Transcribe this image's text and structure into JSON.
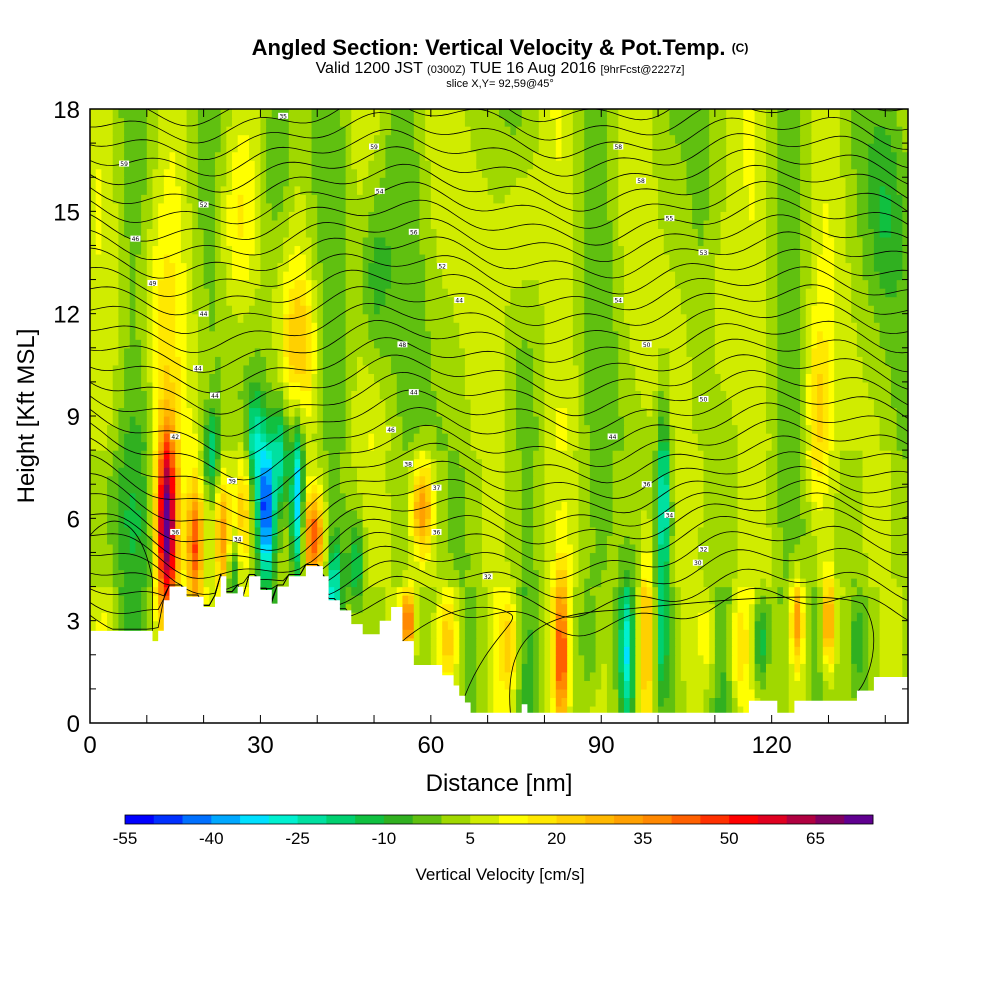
{
  "header": {
    "title": "Angled Section: Vertical Velocity & Pot.Temp.",
    "title_unit": "(C)",
    "subtitle_main": "Valid 1200 JST",
    "subtitle_z": "(0300Z)",
    "subtitle_date": "TUE 16 Aug 2016",
    "subtitle_fcst": "[9hrFcst@2227z]",
    "slice": "slice X,Y= 92,59@45°"
  },
  "chart_data": {
    "type": "heatmap",
    "xlabel": "Distance [nm]",
    "ylabel": "Height [Kft MSL]",
    "xlim": [
      0,
      144
    ],
    "ylim": [
      0,
      18
    ],
    "xticks": [
      0,
      30,
      60,
      90,
      120
    ],
    "yticks": [
      0,
      3,
      6,
      9,
      12,
      15,
      18
    ],
    "terrain_kft": [
      [
        0,
        2.7
      ],
      [
        11,
        2.7
      ],
      [
        11,
        2.4
      ],
      [
        12,
        2.4
      ],
      [
        12,
        2.7
      ],
      [
        13,
        2.7
      ],
      [
        13,
        3.6
      ],
      [
        14,
        3.6
      ],
      [
        14,
        4.0
      ],
      [
        17,
        4.0
      ],
      [
        17,
        3.7
      ],
      [
        20,
        3.7
      ],
      [
        20,
        3.4
      ],
      [
        22,
        3.4
      ],
      [
        22,
        3.7
      ],
      [
        23,
        3.7
      ],
      [
        23,
        4.3
      ],
      [
        24,
        4.3
      ],
      [
        24,
        3.8
      ],
      [
        26,
        3.8
      ],
      [
        26,
        4.0
      ],
      [
        27,
        4.0
      ],
      [
        27,
        3.7
      ],
      [
        28,
        3.7
      ],
      [
        28,
        4.3
      ],
      [
        30,
        4.3
      ],
      [
        30,
        3.9
      ],
      [
        32,
        3.9
      ],
      [
        32,
        3.5
      ],
      [
        33,
        3.5
      ],
      [
        33,
        4.0
      ],
      [
        35,
        4.0
      ],
      [
        35,
        4.3
      ],
      [
        38,
        4.3
      ],
      [
        38,
        4.6
      ],
      [
        41,
        4.6
      ],
      [
        41,
        4.3
      ],
      [
        42,
        4.3
      ],
      [
        42,
        3.6
      ],
      [
        44,
        3.6
      ],
      [
        44,
        3.3
      ],
      [
        46,
        3.3
      ],
      [
        46,
        2.9
      ],
      [
        48,
        2.9
      ],
      [
        48,
        2.6
      ],
      [
        51,
        2.6
      ],
      [
        51,
        3.0
      ],
      [
        53,
        3.0
      ],
      [
        53,
        3.4
      ],
      [
        55,
        3.4
      ],
      [
        55,
        2.4
      ],
      [
        57,
        2.4
      ],
      [
        57,
        1.7
      ],
      [
        62,
        1.7
      ],
      [
        62,
        1.4
      ],
      [
        64,
        1.4
      ],
      [
        64,
        1.1
      ],
      [
        65,
        1.1
      ],
      [
        65,
        0.8
      ],
      [
        66,
        0.8
      ],
      [
        66,
        0.6
      ],
      [
        67,
        0.6
      ],
      [
        67,
        0.3
      ],
      [
        76,
        0.3
      ],
      [
        76,
        0.55
      ],
      [
        77,
        0.55
      ],
      [
        77,
        0.3
      ],
      [
        116,
        0.3
      ],
      [
        116,
        0.65
      ],
      [
        121,
        0.65
      ],
      [
        121,
        0.3
      ],
      [
        124,
        0.3
      ],
      [
        124,
        0.65
      ],
      [
        135,
        0.65
      ],
      [
        135,
        0.95
      ],
      [
        138,
        0.95
      ],
      [
        138,
        1.35
      ],
      [
        144,
        1.35
      ]
    ],
    "theta_contour_labels": [
      {
        "x": 34,
        "y": 17.8,
        "label": "35"
      },
      {
        "x": 50,
        "y": 16.9,
        "label": "59"
      },
      {
        "x": 93,
        "y": 16.9,
        "label": "58"
      },
      {
        "x": 6,
        "y": 16.4,
        "label": "59"
      },
      {
        "x": 97,
        "y": 15.9,
        "label": "58"
      },
      {
        "x": 51,
        "y": 15.6,
        "label": "54"
      },
      {
        "x": 20,
        "y": 15.2,
        "label": "52"
      },
      {
        "x": 102,
        "y": 14.8,
        "label": "55"
      },
      {
        "x": 57,
        "y": 14.4,
        "label": "56"
      },
      {
        "x": 8,
        "y": 14.2,
        "label": "46"
      },
      {
        "x": 108,
        "y": 13.8,
        "label": "53"
      },
      {
        "x": 62,
        "y": 13.4,
        "label": "52"
      },
      {
        "x": 11,
        "y": 12.9,
        "label": "49"
      },
      {
        "x": 65,
        "y": 12.4,
        "label": "44"
      },
      {
        "x": 93,
        "y": 12.4,
        "label": "54"
      },
      {
        "x": 20,
        "y": 12.0,
        "label": "44"
      },
      {
        "x": 55,
        "y": 11.1,
        "label": "48"
      },
      {
        "x": 98,
        "y": 11.1,
        "label": "50"
      },
      {
        "x": 19,
        "y": 10.4,
        "label": "44"
      },
      {
        "x": 57,
        "y": 9.7,
        "label": "44"
      },
      {
        "x": 22,
        "y": 9.6,
        "label": "44"
      },
      {
        "x": 108,
        "y": 9.5,
        "label": "50"
      },
      {
        "x": 53,
        "y": 8.6,
        "label": "46"
      },
      {
        "x": 92,
        "y": 8.4,
        "label": "44"
      },
      {
        "x": 15,
        "y": 8.4,
        "label": "42"
      },
      {
        "x": 56,
        "y": 7.6,
        "label": "38"
      },
      {
        "x": 25,
        "y": 7.1,
        "label": "39"
      },
      {
        "x": 98,
        "y": 7.0,
        "label": "36"
      },
      {
        "x": 61,
        "y": 6.9,
        "label": "37"
      },
      {
        "x": 102,
        "y": 6.1,
        "label": "34"
      },
      {
        "x": 15,
        "y": 5.6,
        "label": "36"
      },
      {
        "x": 26,
        "y": 5.4,
        "label": "34"
      },
      {
        "x": 61,
        "y": 5.6,
        "label": "36"
      },
      {
        "x": 108,
        "y": 5.1,
        "label": "32"
      },
      {
        "x": 107,
        "y": 4.7,
        "label": "30"
      },
      {
        "x": 70,
        "y": 4.3,
        "label": "32"
      }
    ],
    "velocity_features": [
      {
        "x": 13.5,
        "y": 5.8,
        "sx": 1.3,
        "sy": 2.0,
        "w": 72
      },
      {
        "x": 18.5,
        "y": 5.2,
        "sx": 1.0,
        "sy": 1.4,
        "w": 40
      },
      {
        "x": 23.5,
        "y": 5.4,
        "sx": 1.0,
        "sy": 1.3,
        "w": 30
      },
      {
        "x": 27.0,
        "y": 6.2,
        "sx": 0.9,
        "sy": 1.3,
        "w": 22
      },
      {
        "x": 31.0,
        "y": 6.3,
        "sx": 1.0,
        "sy": 1.4,
        "w": -48
      },
      {
        "x": 36.5,
        "y": 6.6,
        "sx": 0.8,
        "sy": 1.8,
        "w": -42
      },
      {
        "x": 39.5,
        "y": 5.4,
        "sx": 1.3,
        "sy": 1.0,
        "w": 42
      },
      {
        "x": 29.0,
        "y": 8.3,
        "sx": 1.0,
        "sy": 1.0,
        "w": -22
      },
      {
        "x": 33.5,
        "y": 8.0,
        "sx": 1.0,
        "sy": 1.1,
        "w": -26
      },
      {
        "x": 21.5,
        "y": 8.0,
        "sx": 1.0,
        "sy": 0.9,
        "w": -22
      },
      {
        "x": 25.0,
        "y": 4.4,
        "sx": 0.9,
        "sy": 0.8,
        "w": -22
      },
      {
        "x": 43.0,
        "y": 3.9,
        "sx": 0.9,
        "sy": 1.0,
        "w": -25
      },
      {
        "x": 47.0,
        "y": 4.7,
        "sx": 1.0,
        "sy": 1.0,
        "w": -20
      },
      {
        "x": 58.5,
        "y": 6.3,
        "sx": 1.3,
        "sy": 1.0,
        "w": 32
      },
      {
        "x": 56.0,
        "y": 3.0,
        "sx": 0.8,
        "sy": 0.6,
        "w": 40
      },
      {
        "x": 83.0,
        "y": 2.0,
        "sx": 0.9,
        "sy": 1.6,
        "w": 40
      },
      {
        "x": 94.5,
        "y": 2.0,
        "sx": 0.9,
        "sy": 1.5,
        "w": -30
      },
      {
        "x": 98.0,
        "y": 2.5,
        "sx": 0.9,
        "sy": 2.0,
        "w": 25
      },
      {
        "x": 101.0,
        "y": 6.5,
        "sx": 0.8,
        "sy": 2.0,
        "w": -30
      },
      {
        "x": 100.5,
        "y": 2.4,
        "sx": 0.8,
        "sy": 1.2,
        "w": -15
      },
      {
        "x": 109.0,
        "y": 2.5,
        "sx": 1.0,
        "sy": 1.0,
        "w": 10
      },
      {
        "x": 114.0,
        "y": 2.2,
        "sx": 1.0,
        "sy": 1.0,
        "w": 14
      },
      {
        "x": 118.0,
        "y": 2.4,
        "sx": 0.9,
        "sy": 1.0,
        "w": -22
      },
      {
        "x": 124.5,
        "y": 3.0,
        "sx": 0.8,
        "sy": 1.0,
        "w": 30
      },
      {
        "x": 130.0,
        "y": 3.0,
        "sx": 0.8,
        "sy": 1.0,
        "w": 35
      },
      {
        "x": 135.0,
        "y": 2.5,
        "sx": 0.9,
        "sy": 1.0,
        "w": -12
      },
      {
        "x": 74.0,
        "y": 2.2,
        "sx": 1.2,
        "sy": 1.2,
        "w": 20
      },
      {
        "x": 88.0,
        "y": 2.5,
        "sx": 1.2,
        "sy": 1.2,
        "w": -10
      },
      {
        "x": 63.0,
        "y": 2.5,
        "sx": 1.4,
        "sy": 1.0,
        "w": 18
      },
      {
        "x": 12.0,
        "y": 12.0,
        "sx": 2.5,
        "sy": 2.5,
        "w": 10
      },
      {
        "x": 26.0,
        "y": 14.5,
        "sx": 2.5,
        "sy": 2.0,
        "w": 14
      },
      {
        "x": 37.0,
        "y": 11.0,
        "sx": 2.0,
        "sy": 1.5,
        "w": 18
      },
      {
        "x": 33.0,
        "y": 16.5,
        "sx": 2.0,
        "sy": 2.0,
        "w": -12
      },
      {
        "x": 76.0,
        "y": 14.5,
        "sx": 2.5,
        "sy": 2.0,
        "w": 12
      },
      {
        "x": 111.0,
        "y": 12.0,
        "sx": 2.0,
        "sy": 3.0,
        "w": 10
      },
      {
        "x": 128.0,
        "y": 9.0,
        "sx": 1.5,
        "sy": 2.0,
        "w": 18
      },
      {
        "x": 140.0,
        "y": 15.0,
        "sx": 2.0,
        "sy": 2.0,
        "w": -10
      },
      {
        "x": 50.0,
        "y": 13.0,
        "sx": 2.0,
        "sy": 2.0,
        "w": -15
      },
      {
        "x": 6.0,
        "y": 6.0,
        "sx": 3.0,
        "sy": 2.0,
        "w": -10
      }
    ],
    "colorbar": {
      "label": "Vertical Velocity [cm/s]",
      "ticks": [
        "-55",
        "-40",
        "-25",
        "-10",
        "5",
        "20",
        "35",
        "50",
        "65"
      ],
      "tick_values": [
        -55,
        -40,
        -25,
        -10,
        5,
        20,
        35,
        50,
        65
      ],
      "min": -55,
      "max": 75,
      "step": 5,
      "colors": [
        "#0000ff",
        "#0030ff",
        "#0070ff",
        "#00a8ff",
        "#00e0ff",
        "#00f0d0",
        "#00e0a0",
        "#00d070",
        "#10c040",
        "#30b020",
        "#60c010",
        "#a0d800",
        "#d0ec00",
        "#ffff00",
        "#ffe800",
        "#ffd000",
        "#ffb800",
        "#ffa000",
        "#ff8800",
        "#ff6000",
        "#ff3000",
        "#ff0000",
        "#e00020",
        "#b00040",
        "#800060",
        "#600090"
      ]
    }
  }
}
